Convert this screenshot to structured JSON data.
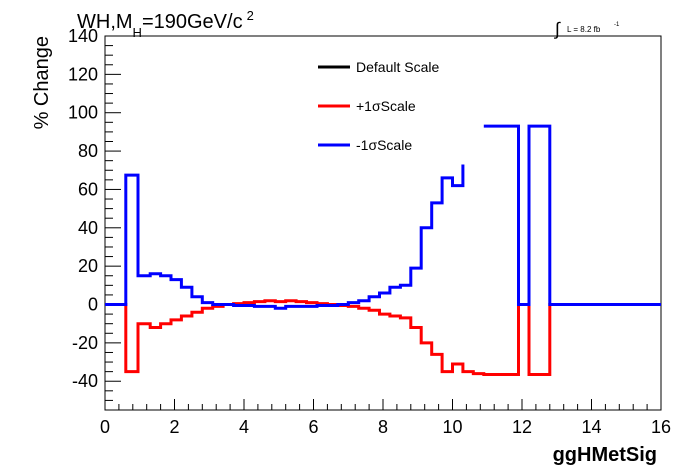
{
  "title": {
    "main": "WH,M",
    "sub": "H",
    "rest": "=190GeV/c",
    "sup": "2"
  },
  "lumi": {
    "symbol": "∫",
    "text": "L = 8.2 fb",
    "sup": "-1"
  },
  "chart_data": {
    "type": "line",
    "xlabel": "ggHMetSig",
    "ylabel": "% Change",
    "xlim": [
      0,
      16
    ],
    "ylim": [
      -55,
      140
    ],
    "x_ticks": [
      "0",
      "2",
      "4",
      "6",
      "8",
      "10",
      "12",
      "14",
      "16"
    ],
    "y_ticks": [
      "-40",
      "-20",
      "0",
      "20",
      "40",
      "60",
      "80",
      "100",
      "120",
      "140"
    ],
    "grid": false,
    "legend_position": "top-center",
    "series": [
      {
        "name": "Default Scale",
        "color": "#000000",
        "segments": []
      },
      {
        "name": "+1σScale",
        "color": "#ff0000",
        "segments": [
          [
            [
              0.0,
              0
            ],
            [
              0.6,
              0
            ],
            [
              0.6,
              -35
            ],
            [
              0.95,
              -35
            ],
            [
              0.95,
              -10
            ],
            [
              1.3,
              -10
            ],
            [
              1.3,
              -12
            ],
            [
              1.6,
              -12
            ],
            [
              1.6,
              -10
            ],
            [
              1.9,
              -10
            ],
            [
              1.9,
              -8
            ],
            [
              2.2,
              -8
            ],
            [
              2.2,
              -6
            ],
            [
              2.5,
              -6
            ],
            [
              2.5,
              -4
            ],
            [
              2.8,
              -4
            ],
            [
              2.8,
              -2
            ],
            [
              3.1,
              -2
            ],
            [
              3.1,
              -1
            ],
            [
              3.4,
              -1
            ],
            [
              3.4,
              0
            ],
            [
              3.7,
              0
            ],
            [
              3.7,
              0.5
            ],
            [
              4.0,
              0.5
            ],
            [
              4.0,
              1
            ],
            [
              4.3,
              1
            ],
            [
              4.3,
              1.5
            ],
            [
              4.6,
              1.5
            ],
            [
              4.6,
              2
            ],
            [
              4.9,
              2
            ],
            [
              4.9,
              1.5
            ],
            [
              5.2,
              1.5
            ],
            [
              5.2,
              2
            ],
            [
              5.5,
              2
            ],
            [
              5.5,
              1.5
            ],
            [
              5.8,
              1.5
            ],
            [
              5.8,
              1
            ],
            [
              6.1,
              1
            ],
            [
              6.1,
              0.5
            ],
            [
              6.4,
              0.5
            ],
            [
              6.4,
              0
            ],
            [
              6.7,
              0
            ],
            [
              6.7,
              -0.5
            ],
            [
              7.0,
              -0.5
            ],
            [
              7.0,
              -1
            ],
            [
              7.3,
              -1
            ],
            [
              7.3,
              -2
            ],
            [
              7.6,
              -2
            ],
            [
              7.6,
              -3
            ],
            [
              7.9,
              -3
            ],
            [
              7.9,
              -5
            ],
            [
              8.2,
              -5
            ],
            [
              8.2,
              -6
            ],
            [
              8.5,
              -6
            ],
            [
              8.5,
              -7
            ],
            [
              8.8,
              -7
            ],
            [
              8.8,
              -12
            ],
            [
              9.1,
              -12
            ],
            [
              9.1,
              -20
            ],
            [
              9.4,
              -20
            ],
            [
              9.4,
              -26
            ],
            [
              9.7,
              -26
            ],
            [
              9.7,
              -35
            ],
            [
              10.0,
              -35
            ],
            [
              10.0,
              -31
            ],
            [
              10.3,
              -31
            ],
            [
              10.3,
              -35
            ],
            [
              10.6,
              -35
            ],
            [
              10.6,
              -36
            ],
            [
              10.9,
              -36
            ],
            [
              10.9,
              -36.5
            ],
            [
              11.9,
              -36.5
            ],
            [
              11.9,
              0
            ],
            [
              12.2,
              0
            ],
            [
              12.2,
              -36.5
            ],
            [
              12.8,
              -36.5
            ],
            [
              12.8,
              0
            ],
            [
              16.0,
              0
            ]
          ]
        ]
      },
      {
        "name": "-1σScale",
        "color": "#0000ff",
        "segments": [
          [
            [
              0.0,
              0
            ],
            [
              0.6,
              0
            ],
            [
              0.6,
              67.5
            ],
            [
              0.95,
              67.5
            ],
            [
              0.95,
              15
            ],
            [
              1.3,
              15
            ],
            [
              1.3,
              16
            ],
            [
              1.6,
              16
            ],
            [
              1.6,
              15
            ],
            [
              1.9,
              15
            ],
            [
              1.9,
              13
            ],
            [
              2.2,
              13
            ],
            [
              2.2,
              9
            ],
            [
              2.5,
              9
            ],
            [
              2.5,
              4
            ],
            [
              2.8,
              4
            ],
            [
              2.8,
              1
            ],
            [
              3.1,
              1
            ],
            [
              3.1,
              0
            ],
            [
              3.7,
              0
            ],
            [
              3.7,
              -0.5
            ],
            [
              4.3,
              -0.5
            ],
            [
              4.3,
              -1
            ],
            [
              4.9,
              -1
            ],
            [
              4.9,
              -2
            ],
            [
              5.2,
              -2
            ],
            [
              5.2,
              -1
            ],
            [
              6.1,
              -1
            ],
            [
              6.1,
              -0.5
            ],
            [
              6.7,
              -0.5
            ],
            [
              6.7,
              0
            ],
            [
              7.0,
              0
            ],
            [
              7.0,
              1
            ],
            [
              7.3,
              1
            ],
            [
              7.3,
              2
            ],
            [
              7.6,
              2
            ],
            [
              7.6,
              4
            ],
            [
              7.9,
              4
            ],
            [
              7.9,
              6
            ],
            [
              8.2,
              6
            ],
            [
              8.2,
              9
            ],
            [
              8.5,
              9
            ],
            [
              8.5,
              10
            ],
            [
              8.8,
              10
            ],
            [
              8.8,
              19
            ],
            [
              9.1,
              19
            ],
            [
              9.1,
              40
            ],
            [
              9.4,
              40
            ],
            [
              9.4,
              53
            ],
            [
              9.7,
              53
            ],
            [
              9.7,
              66
            ],
            [
              10.0,
              66
            ],
            [
              10.0,
              62
            ],
            [
              10.3,
              62
            ],
            [
              10.3,
              73
            ]
          ],
          [
            [
              10.9,
              93
            ],
            [
              11.9,
              93
            ],
            [
              11.9,
              0
            ],
            [
              12.2,
              0
            ],
            [
              12.2,
              93
            ],
            [
              12.8,
              93
            ],
            [
              12.8,
              0
            ],
            [
              16.0,
              0
            ]
          ]
        ]
      }
    ]
  }
}
